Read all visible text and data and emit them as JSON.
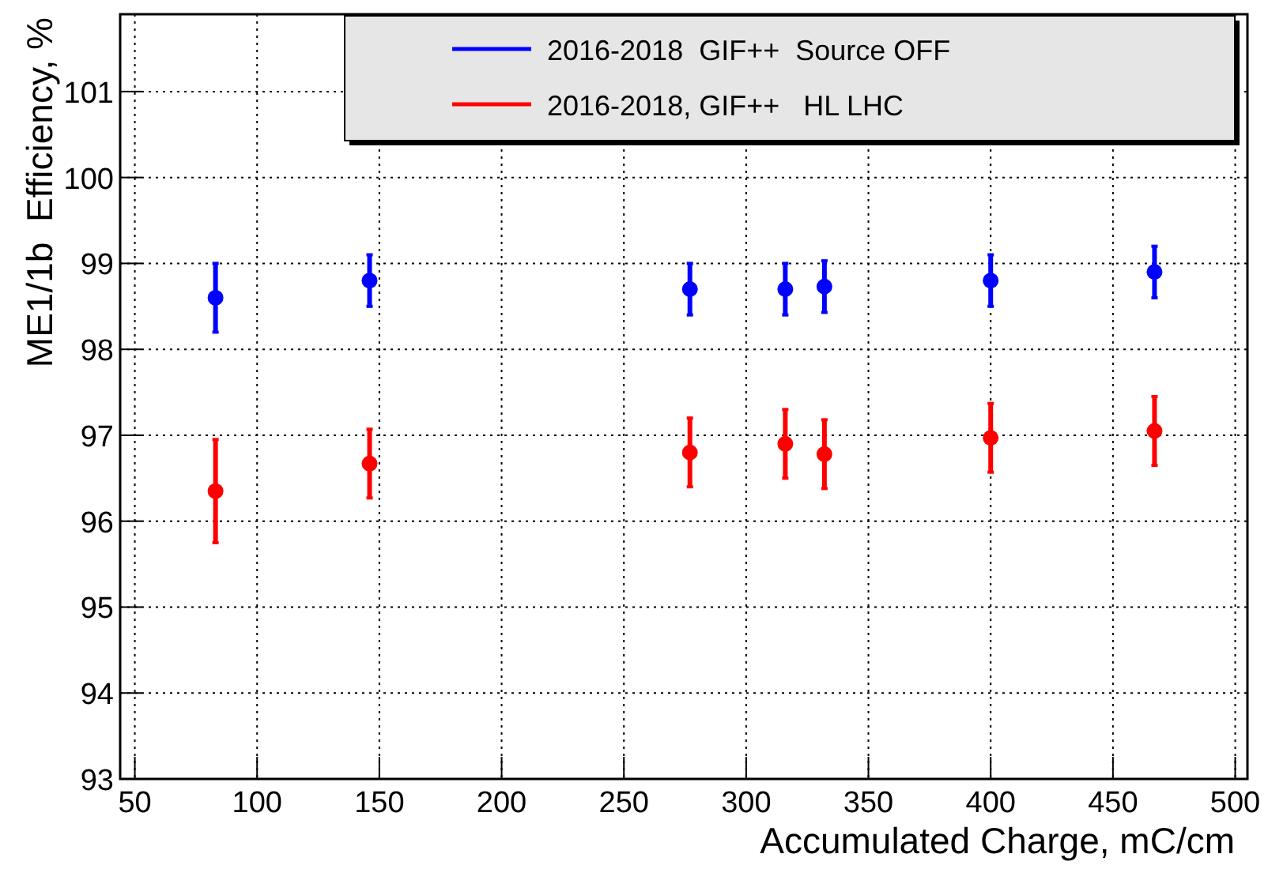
{
  "chart_data": {
    "type": "scatter",
    "xlabel": "Accumulated Charge, mC/cm",
    "ylabel": "ME1/1b  Efficiency, %",
    "xlim": [
      44,
      505
    ],
    "xticks": [
      50,
      100,
      150,
      200,
      250,
      300,
      350,
      400,
      450,
      500
    ],
    "ylim": [
      93,
      101.9
    ],
    "yticks": [
      93,
      94,
      95,
      96,
      97,
      98,
      99,
      100,
      101
    ],
    "grid": true,
    "legend": "top right",
    "marker": "circle",
    "series": [
      {
        "name": "2016-2018  GIF++  Source OFF",
        "color": "#0000ff",
        "x": [
          83,
          146,
          277,
          316,
          332,
          400,
          467
        ],
        "values": [
          98.6,
          98.8,
          98.7,
          98.7,
          98.73,
          98.8,
          98.9
        ],
        "errors": [
          0.4,
          0.3,
          0.3,
          0.3,
          0.3,
          0.3,
          0.3
        ]
      },
      {
        "name": "2016-2018, GIF++   HL LHC",
        "color": "#ff0000",
        "x": [
          83,
          146,
          277,
          316,
          332,
          400,
          467
        ],
        "values": [
          96.35,
          96.67,
          96.8,
          96.9,
          96.78,
          96.97,
          97.05
        ],
        "errors": [
          0.6,
          0.4,
          0.4,
          0.4,
          0.4,
          0.4,
          0.4
        ]
      }
    ]
  }
}
